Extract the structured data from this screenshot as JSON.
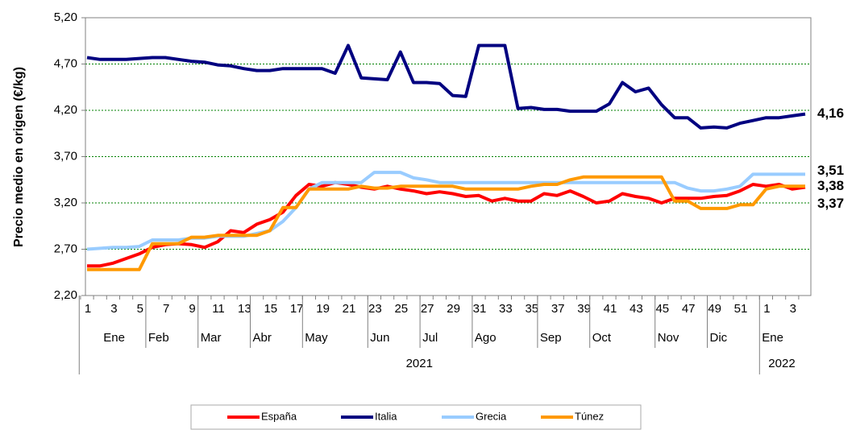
{
  "chart_data": {
    "type": "line",
    "y_label": "Precio medio en origen (€/kg)",
    "categories": [
      "1",
      null,
      "3",
      null,
      "5",
      null,
      "7",
      null,
      "9",
      null,
      "11",
      null,
      "13",
      null,
      "15",
      null,
      "17",
      null,
      "19",
      null,
      "21",
      null,
      "23",
      null,
      "25",
      null,
      "27",
      null,
      "29",
      null,
      "31",
      null,
      "33",
      null,
      "35",
      null,
      "37",
      null,
      "39",
      null,
      "41",
      null,
      "43",
      null,
      "45",
      null,
      "47",
      null,
      "49",
      null,
      "51",
      null,
      "1",
      null,
      "3",
      null
    ],
    "months": [
      "Ene",
      "Feb",
      "Mar",
      "Abr",
      "May",
      "Jun",
      "Jul",
      "Ago",
      "Sep",
      "Oct",
      "Nov",
      "Dic",
      "Ene"
    ],
    "years": [
      "2021",
      "2022"
    ],
    "ylim": [
      2.2,
      5.2
    ],
    "yticks": [
      {
        "value": 2.2,
        "label": "2,20"
      },
      {
        "value": 2.7,
        "label": "2,70"
      },
      {
        "value": 3.2,
        "label": "3,20"
      },
      {
        "value": 3.7,
        "label": "3,70"
      },
      {
        "value": 4.2,
        "label": "4,20"
      },
      {
        "value": 4.7,
        "label": "4,70"
      },
      {
        "value": 5.2,
        "label": "5,20"
      }
    ],
    "grid": true,
    "legend": "bottom",
    "series": [
      {
        "name": "España",
        "color": "#ff0000",
        "end_label": "3,37",
        "end_color": "#cc2222",
        "values": [
          2.52,
          2.52,
          2.55,
          2.6,
          2.65,
          2.72,
          2.75,
          2.76,
          2.75,
          2.72,
          2.78,
          2.9,
          2.88,
          2.97,
          3.02,
          3.1,
          3.28,
          3.4,
          3.38,
          3.42,
          3.4,
          3.37,
          3.35,
          3.38,
          3.35,
          3.33,
          3.3,
          3.32,
          3.3,
          3.27,
          3.28,
          3.22,
          3.25,
          3.22,
          3.22,
          3.3,
          3.28,
          3.33,
          3.27,
          3.2,
          3.22,
          3.3,
          3.27,
          3.25,
          3.2,
          3.25,
          3.25,
          3.25,
          3.27,
          3.28,
          3.33,
          3.4,
          3.38,
          3.4,
          3.35,
          3.37
        ]
      },
      {
        "name": "Italia",
        "color": "#000080",
        "end_label": "4,16",
        "end_color": "#1f3a6e",
        "values": [
          4.77,
          4.75,
          4.75,
          4.75,
          4.76,
          4.77,
          4.77,
          4.75,
          4.73,
          4.72,
          4.69,
          4.68,
          4.65,
          4.63,
          4.63,
          4.65,
          4.65,
          4.65,
          4.65,
          4.6,
          4.9,
          4.55,
          4.54,
          4.53,
          4.83,
          4.5,
          4.5,
          4.49,
          4.36,
          4.35,
          4.9,
          4.9,
          4.9,
          4.22,
          4.23,
          4.21,
          4.21,
          4.19,
          4.19,
          4.19,
          4.27,
          4.5,
          4.4,
          4.44,
          4.26,
          4.12,
          4.12,
          4.01,
          4.02,
          4.01,
          4.06,
          4.09,
          4.12,
          4.12,
          4.14,
          4.16
        ]
      },
      {
        "name": "Grecia",
        "color": "#99ccff",
        "end_label": "3,51",
        "end_color": "#6fa8dc",
        "values": [
          2.7,
          2.71,
          2.72,
          2.72,
          2.73,
          2.8,
          2.8,
          2.8,
          2.82,
          2.82,
          2.84,
          2.84,
          2.84,
          2.87,
          2.9,
          3.0,
          3.15,
          3.35,
          3.42,
          3.42,
          3.42,
          3.42,
          3.53,
          3.53,
          3.53,
          3.47,
          3.45,
          3.42,
          3.42,
          3.42,
          3.42,
          3.42,
          3.42,
          3.42,
          3.42,
          3.42,
          3.42,
          3.42,
          3.42,
          3.42,
          3.42,
          3.42,
          3.42,
          3.42,
          3.42,
          3.42,
          3.36,
          3.33,
          3.33,
          3.35,
          3.38,
          3.51,
          3.51,
          3.51,
          3.51,
          3.51
        ]
      },
      {
        "name": "Túnez",
        "color": "#ff9900",
        "end_label": "3,38",
        "end_color": "#f0883a",
        "values": [
          2.48,
          2.48,
          2.48,
          2.48,
          2.48,
          2.76,
          2.76,
          2.76,
          2.83,
          2.83,
          2.85,
          2.85,
          2.85,
          2.85,
          2.9,
          3.15,
          3.15,
          3.35,
          3.35,
          3.35,
          3.35,
          3.38,
          3.36,
          3.36,
          3.38,
          3.38,
          3.38,
          3.38,
          3.38,
          3.35,
          3.35,
          3.35,
          3.35,
          3.35,
          3.38,
          3.4,
          3.4,
          3.45,
          3.48,
          3.48,
          3.48,
          3.48,
          3.48,
          3.48,
          3.48,
          3.22,
          3.22,
          3.14,
          3.14,
          3.14,
          3.18,
          3.18,
          3.35,
          3.38,
          3.38,
          3.38
        ]
      }
    ]
  }
}
